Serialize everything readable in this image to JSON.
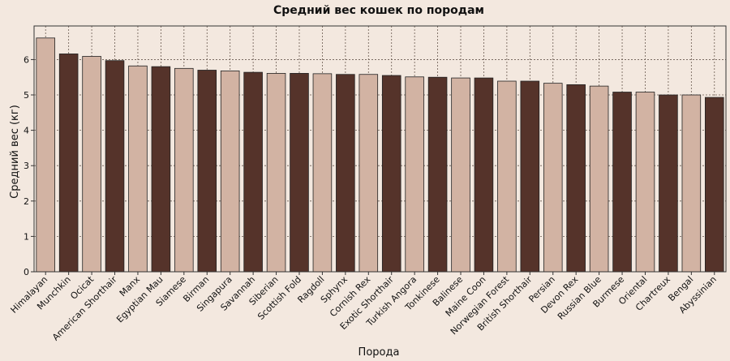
{
  "chart_data": {
    "type": "bar",
    "title": "Средний вес кошек по породам",
    "xlabel": "Порода",
    "ylabel": "Средний вес (кг)",
    "ylim": [
      0,
      6.95
    ],
    "yticks": [
      0,
      1,
      2,
      3,
      4,
      5,
      6
    ],
    "grid": true,
    "categories": [
      "Himalayan",
      "Munchkin",
      "Ocicat",
      "American Shorthair",
      "Manx",
      "Egyptian Mau",
      "Siamese",
      "Birman",
      "Singapura",
      "Savannah",
      "Siberian",
      "Scottish Fold",
      "Ragdoll",
      "Sphynx",
      "Cornish Rex",
      "Exotic Shorthair",
      "Turkish Angora",
      "Tonkinese",
      "Balinese",
      "Maine Coon",
      "Norwegian Forest",
      "British Shorthair",
      "Persian",
      "Devon Rex",
      "Russian Blue",
      "Burmese",
      "Oriental",
      "Chartreux",
      "Bengal",
      "Abyssinian"
    ],
    "values": [
      6.61,
      6.16,
      6.09,
      5.97,
      5.82,
      5.8,
      5.75,
      5.7,
      5.68,
      5.64,
      5.61,
      5.61,
      5.6,
      5.58,
      5.58,
      5.55,
      5.51,
      5.5,
      5.48,
      5.48,
      5.39,
      5.39,
      5.33,
      5.29,
      5.25,
      5.08,
      5.08,
      5.0,
      5.0,
      4.93
    ],
    "colors": {
      "light": "#d2b3a3",
      "dark": "#55332a",
      "background": "#f3e8df",
      "grid": "#6a5a50"
    }
  }
}
